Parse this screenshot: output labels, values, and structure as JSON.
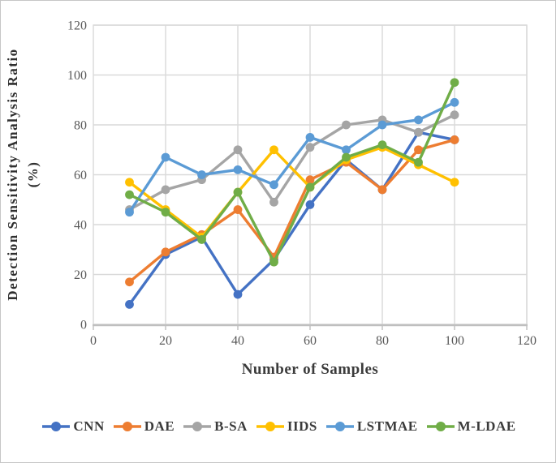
{
  "figure": {
    "y_axis_title_line1": "Detection Sensitivity Analysis  Ratio",
    "y_axis_title_line2": "(%)",
    "x_axis_title": "Number of Samples"
  },
  "chart_data": {
    "type": "line",
    "title": "",
    "xlabel": "Number of Samples",
    "ylabel": "Detection Sensitivity Analysis Ratio (%)",
    "xlim": [
      0,
      120
    ],
    "ylim": [
      0,
      120
    ],
    "x_ticks": [
      0,
      20,
      40,
      60,
      80,
      100,
      120
    ],
    "y_ticks": [
      0,
      20,
      40,
      60,
      80,
      100,
      120
    ],
    "grid": true,
    "legend_position": "bottom",
    "x": [
      10,
      20,
      30,
      40,
      50,
      60,
      70,
      80,
      90,
      100
    ],
    "series": [
      {
        "name": "CNN",
        "color": "#4472C4",
        "values": [
          8,
          28,
          35,
          12,
          26,
          48,
          66,
          54,
          77,
          74
        ]
      },
      {
        "name": "DAE",
        "color": "#ED7D31",
        "values": [
          17,
          29,
          36,
          46,
          27,
          58,
          65,
          54,
          70,
          74
        ]
      },
      {
        "name": "B-SA",
        "color": "#A5A5A5",
        "values": [
          46,
          54,
          58,
          70,
          49,
          71,
          80,
          82,
          77,
          84
        ]
      },
      {
        "name": "IIDS",
        "color": "#FFC000",
        "values": [
          57,
          46,
          35,
          53,
          70,
          55,
          66,
          71,
          64,
          57
        ]
      },
      {
        "name": "LSTMAE",
        "color": "#5B9BD5",
        "values": [
          45,
          67,
          60,
          62,
          56,
          75,
          70,
          80,
          82,
          89
        ]
      },
      {
        "name": "M-LDAE",
        "color": "#70AD47",
        "values": [
          52,
          45,
          34,
          53,
          25,
          55,
          67,
          72,
          65,
          97
        ]
      }
    ],
    "colors": {
      "grid": "#d9d9d9",
      "axis": "#bfbfbf",
      "tick_text": "#595959"
    }
  }
}
